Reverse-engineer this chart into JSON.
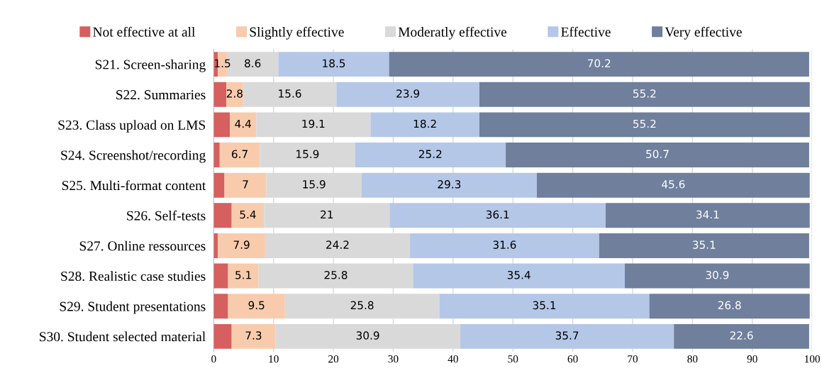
{
  "chart_data": {
    "type": "bar",
    "orientation": "horizontal",
    "stacked": true,
    "categories": [
      "S21. Screen-sharing",
      "S22. Summaries",
      "S23. Class upload on LMS",
      "S24. Screenshot/recording",
      "S25. Multi-format content",
      "S26. Self-tests",
      "S27. Online ressources",
      "S28. Realistic case studies",
      "S29. Student presentations",
      "S30. Student selected material"
    ],
    "series": [
      {
        "name": "Not effective at all",
        "color": "#d65f5f",
        "values": [
          0.7,
          2.1,
          2.7,
          1.0,
          1.8,
          3.0,
          0.7,
          2.4,
          2.4,
          3.0
        ],
        "value_labels": [
          null,
          null,
          null,
          null,
          null,
          null,
          null,
          null,
          null,
          null
        ]
      },
      {
        "name": "Slightly effective",
        "color": "#f8cbad",
        "values": [
          1.5,
          2.8,
          4.4,
          6.7,
          7,
          5.4,
          7.9,
          5.1,
          9.5,
          7.3
        ],
        "value_labels": [
          "1.5",
          "2.8",
          "4.4",
          "6.7",
          "7",
          "5.4",
          "7.9",
          "5.1",
          "9.5",
          "7.3"
        ]
      },
      {
        "name": "Moderatly effective",
        "color": "#d9d9d9",
        "values": [
          8.6,
          15.6,
          19.1,
          15.9,
          15.9,
          21,
          24.2,
          25.8,
          25.8,
          30.9
        ],
        "value_labels": [
          "8.6",
          "15.6",
          "19.1",
          "15.9",
          "15.9",
          "21",
          "24.2",
          "25.8",
          "25.8",
          "30.9"
        ]
      },
      {
        "name": "Effective",
        "color": "#b4c7e7",
        "values": [
          18.5,
          23.9,
          18.2,
          25.2,
          29.3,
          36.1,
          31.6,
          35.4,
          35.1,
          35.7
        ],
        "value_labels": [
          "18.5",
          "23.9",
          "18.2",
          "25.2",
          "29.3",
          "36.1",
          "31.6",
          "35.4",
          "35.1",
          "35.7"
        ]
      },
      {
        "name": "Very effective",
        "color": "#6f7f9c",
        "values": [
          70.2,
          55.2,
          55.2,
          50.7,
          45.6,
          34.1,
          35.1,
          30.9,
          26.8,
          22.6
        ],
        "value_labels": [
          "70.2",
          "55.2",
          "55.2",
          "50.7",
          "45.6",
          "34.1",
          "35.1",
          "30.9",
          "26.8",
          "22.6"
        ]
      }
    ],
    "xlim": [
      0,
      100
    ],
    "xticks": [
      0,
      10,
      20,
      30,
      40,
      50,
      60,
      70,
      80,
      90,
      100
    ],
    "grid": "x",
    "legend": "top"
  }
}
